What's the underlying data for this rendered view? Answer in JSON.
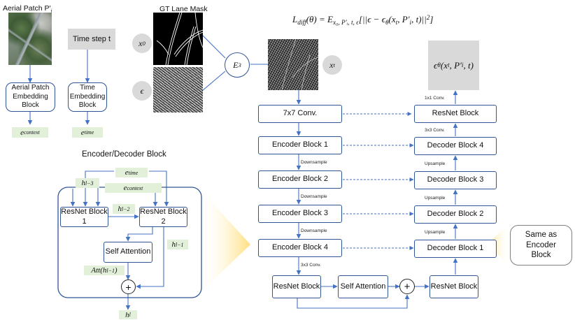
{
  "inputs": {
    "aerial_title": "Aerial Patch P′",
    "aerial_title_sub": "i",
    "gt_title": "GT Lane Mask",
    "time_step": "Time step t",
    "x0": "x",
    "x0_sub": "0",
    "epsilon": "ϵ",
    "e3": "E",
    "e3_sub": "3",
    "xt": "x",
    "xt_sub": "t"
  },
  "embeddings": {
    "aerial_block": "Aerial Patch Embedding Block",
    "time_block": "Time Embedding Block",
    "e_context": "e",
    "e_context_sub": "context",
    "e_time": "e",
    "e_time_sub": "time"
  },
  "loss": {
    "left": "L",
    "left_sub": "diff",
    "body": "(θ) = E",
    "e_sub": "x₀, P′ᵢ, t, ϵ",
    "rest": "[||ϵ − ϵ",
    "rest_sub": "θ",
    "tail": "(x",
    "tail_sub": "t",
    "tail2": ", P′",
    "tail2_sub": "i",
    "end": ", t)||",
    "end_sup": "2",
    "close": "]"
  },
  "output": {
    "eps": "ϵ",
    "eps_sub": "θ",
    "args": "(x",
    "args_sub": "t",
    "args2": ", P′",
    "args2_sub": "i",
    "args3": ", t)"
  },
  "unet": {
    "conv7": "7x7 Conv.",
    "encoders": [
      "Encoder Block 1",
      "Encoder Block 2",
      "Encoder Block 3",
      "Encoder Block 4"
    ],
    "decoders": [
      "Decoder Block 4",
      "Decoder Block 3",
      "Decoder Block 2",
      "Decoder Block 1"
    ],
    "resnet_top": "ResNet Block",
    "downsample": [
      "Downsample",
      "Downsample",
      "Downsample"
    ],
    "upsample": [
      "Upsample",
      "Upsample",
      "Upsample"
    ],
    "conv1": "1x1 Conv.",
    "conv3_top": "3x3 Conv.",
    "conv3_bottom": "3x3 Conv.",
    "bottleneck": [
      "ResNet Block",
      "Self Attention",
      "ResNet Block"
    ],
    "plus": "+"
  },
  "detail": {
    "title": "Encoder/Decoder Block",
    "resnet1": "ResNet Block 1",
    "resnet2": "ResNet Block 2",
    "self_attention": "Self Attention",
    "plus": "+",
    "h_l3": "h",
    "h_l3_sub": "l−3",
    "h_l2": "h",
    "h_l2_sub": "l−2",
    "h_l1": "h",
    "h_l1_sub": "l−1",
    "h_l": "h",
    "h_l_sub": "l",
    "att": "Att(h",
    "att_sub": "l−1",
    "att_end": ")",
    "e_time": "e",
    "e_time_sub": "time",
    "e_context": "e",
    "e_context_sub": "context"
  },
  "side_note": "Same as Encoder Block",
  "colors": {
    "box_border": "#2f5597",
    "arrow": "#4472c4",
    "tag_fill": "#e2f0d9",
    "grey_fill": "#d9d9d9",
    "glow": "#ffd966"
  }
}
